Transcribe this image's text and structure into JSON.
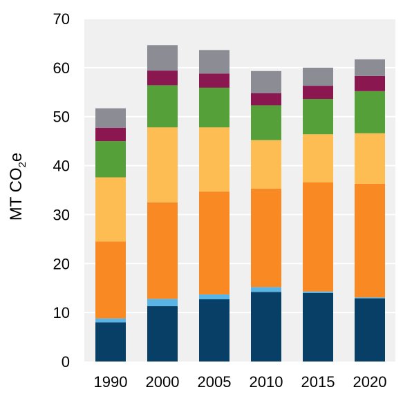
{
  "chart_data": {
    "type": "bar",
    "stacked": true,
    "title": "",
    "xlabel": "",
    "ylabel": "MT CO",
    "ylabel_subscript": "2",
    "ylabel_suffix": "e",
    "ylim": [
      0,
      70
    ],
    "yticks": [
      0,
      10,
      20,
      30,
      40,
      50,
      60,
      70
    ],
    "grid": true,
    "legend": "none",
    "categories": [
      "1990",
      "2000",
      "2005",
      "2010",
      "2015",
      "2020"
    ],
    "series": [
      {
        "color": "#073f66",
        "values": [
          8.0,
          11.3,
          12.7,
          14.2,
          14.0,
          12.9
        ]
      },
      {
        "color": "#5ab4e5",
        "values": [
          0.8,
          1.5,
          1.0,
          1.0,
          0.3,
          0.2
        ]
      },
      {
        "color": "#f98a23",
        "values": [
          15.7,
          19.7,
          21.0,
          20.1,
          22.3,
          23.2
        ]
      },
      {
        "color": "#febd52",
        "values": [
          13.1,
          15.3,
          13.1,
          9.9,
          9.8,
          10.3
        ]
      },
      {
        "color": "#55a039",
        "values": [
          7.4,
          8.6,
          8.1,
          7.1,
          7.2,
          8.6
        ]
      },
      {
        "color": "#8b1751",
        "values": [
          2.7,
          3.0,
          2.9,
          2.5,
          2.7,
          3.1
        ]
      },
      {
        "color": "#8c8c95",
        "values": [
          4.0,
          5.2,
          4.8,
          4.5,
          3.7,
          3.4
        ]
      }
    ],
    "plot_background": "#f0f0f0",
    "grid_color": "#ffffff"
  }
}
